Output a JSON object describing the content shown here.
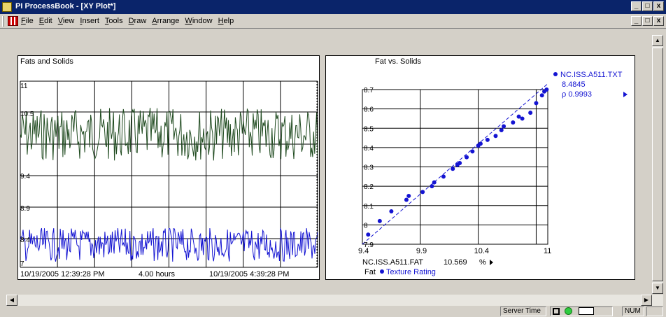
{
  "window": {
    "title": "PI ProcessBook - [XY Plot*]",
    "buttons": [
      "_",
      "□",
      "x"
    ]
  },
  "menubar": {
    "items": [
      "File",
      "Edit",
      "View",
      "Insert",
      "Tools",
      "Draw",
      "Arrange",
      "Window",
      "Help"
    ],
    "mdi_buttons": [
      "_",
      "□",
      "x"
    ]
  },
  "trend": {
    "title": "Fats and Solids",
    "y_ticks": [
      "11",
      "10.5",
      "9.4",
      "8.9",
      "8.4",
      "7"
    ],
    "time_start": "10/19/2005 12:39:28 PM",
    "time_span": "4.00 hours",
    "time_end": "10/19/2005 4:39:28 PM",
    "colors": {
      "upper": "#1f4a1f",
      "lower": "#1414d2"
    }
  },
  "xy": {
    "title": "Fat vs. Solids",
    "y_series": "NC.ISS.A511.TXT",
    "y_value": "8.4845",
    "rho": "ρ 0.9993",
    "x_series": "NC.ISS.A511.FAT",
    "x_value": "10.569",
    "x_unit": "%",
    "legend_label": "Fat",
    "legend_series": "Texture Rating",
    "y_tick_labels": [
      "8.7",
      "8.6",
      "8.5",
      "8.4",
      "8.3",
      "8.2",
      "8.1",
      "8",
      "7.9"
    ],
    "x_tick_labels": [
      "9.4",
      "9.9",
      "10.4",
      "11"
    ],
    "color": "#1414d2"
  },
  "chart_data": {
    "type": "scatter",
    "title": "Fat vs. Solids",
    "xlim": [
      9.4,
      11
    ],
    "ylim": [
      7.9,
      8.7
    ],
    "series": [
      {
        "name": "NC.ISS.A511.TXT",
        "points": [
          [
            9.45,
            7.95
          ],
          [
            9.55,
            8.02
          ],
          [
            9.65,
            8.07
          ],
          [
            9.78,
            8.13
          ],
          [
            9.8,
            8.15
          ],
          [
            9.92,
            8.17
          ],
          [
            10.0,
            8.2
          ],
          [
            10.02,
            8.22
          ],
          [
            10.1,
            8.25
          ],
          [
            10.18,
            8.29
          ],
          [
            10.22,
            8.31
          ],
          [
            10.24,
            8.32
          ],
          [
            10.3,
            8.35
          ],
          [
            10.35,
            8.38
          ],
          [
            10.4,
            8.41
          ],
          [
            10.42,
            8.42
          ],
          [
            10.48,
            8.44
          ],
          [
            10.55,
            8.46
          ],
          [
            10.6,
            8.49
          ],
          [
            10.62,
            8.51
          ],
          [
            10.7,
            8.53
          ],
          [
            10.75,
            8.56
          ],
          [
            10.78,
            8.55
          ],
          [
            10.85,
            8.58
          ],
          [
            10.9,
            8.63
          ],
          [
            10.95,
            8.67
          ],
          [
            10.97,
            8.69
          ],
          [
            10.99,
            8.7
          ]
        ]
      }
    ]
  },
  "statusbar": {
    "server_time": "Server Time",
    "num": "NUM"
  }
}
